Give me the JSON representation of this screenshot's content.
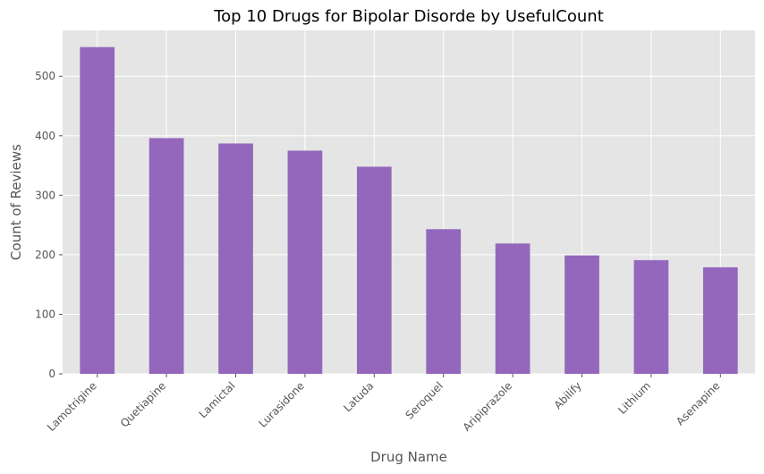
{
  "chart_data": {
    "type": "bar",
    "title": "Top 10 Drugs for Bipolar Disorde by UsefulCount",
    "xlabel": "Drug Name",
    "ylabel": "Count of Reviews",
    "categories": [
      "Lamotrigine",
      "Quetiapine",
      "Lamictal",
      "Lurasidone",
      "Latuda",
      "Seroquel",
      "Aripiprazole",
      "Abilify",
      "Lithium",
      "Asenapine"
    ],
    "values": [
      549,
      396,
      387,
      375,
      348,
      243,
      219,
      199,
      191,
      179
    ],
    "ylim": [
      0,
      577
    ],
    "yticks": [
      0,
      100,
      200,
      300,
      400,
      500
    ],
    "grid": true,
    "colors": {
      "bar": "#9467bd",
      "plot_background": "#e5e5e5",
      "grid": "#ffffff",
      "text": "#555555",
      "title": "#000000"
    }
  }
}
